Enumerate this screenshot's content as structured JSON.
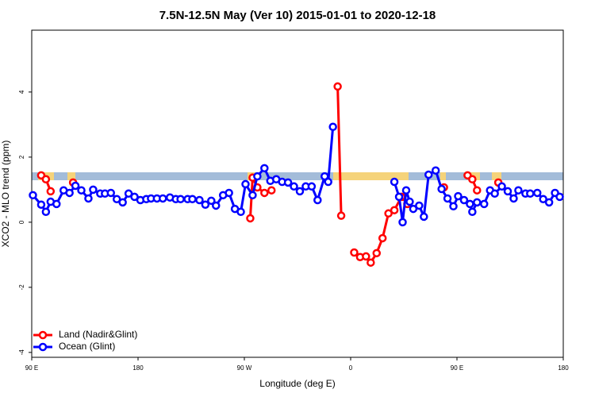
{
  "chart_data": {
    "type": "line",
    "title": "7.5N-12.5N May (Ver 10)   2015-01-01 to 2020-12-18",
    "x_label": "Longitude (deg E)",
    "y_label": "XCO2 - MLO trend (ppm)",
    "xlim": [
      90,
      540
    ],
    "ylim": [
      -4.15,
      5.9
    ],
    "xticks": [
      {
        "value": 90,
        "label": "90 E"
      },
      180,
      {
        "value": 270,
        "label": "90 W"
      },
      {
        "value": 360,
        "label": "0"
      },
      {
        "value": 450,
        "label": "90 E"
      },
      {
        "value": 540,
        "label": "180"
      }
    ],
    "yticks": [
      -4,
      -2,
      0,
      2,
      4
    ],
    "legend": "bottom-left",
    "series": [
      {
        "name": "Land (Nadir&Glint)",
        "color": "#ff0000",
        "x": [
          98,
          102,
          106,
          110,
          125,
          200,
          275,
          277,
          281,
          287,
          293,
          330,
          349,
          352,
          356,
          363,
          368,
          373,
          377,
          382,
          387,
          392,
          397,
          403,
          408,
          420,
          439,
          450,
          459,
          463,
          467,
          470,
          485
        ],
        "values": [
          1.44,
          1.32,
          0.95,
          null,
          1.22,
          null,
          0.12,
          1.37,
          1.07,
          0.9,
          0.98,
          null,
          4.17,
          0.2,
          null,
          -0.93,
          -1.07,
          -1.05,
          -1.24,
          -0.95,
          -0.49,
          0.27,
          0.37,
          0.78,
          0.56,
          null,
          1.07,
          null,
          1.44,
          1.32,
          0.98,
          null,
          1.22
        ]
      },
      {
        "name": "Ocean (Glint)",
        "color": "#0000ff",
        "x": [
          91,
          98,
          102,
          106,
          111,
          117,
          122,
          127,
          132,
          138,
          142,
          148,
          152,
          157,
          162,
          167,
          172,
          177,
          182,
          187,
          191,
          196,
          201,
          207,
          212,
          216,
          222,
          226,
          232,
          237,
          242,
          246,
          252,
          257,
          262,
          267,
          271,
          277,
          281,
          287,
          292,
          297,
          302,
          307,
          312,
          317,
          322,
          327,
          332,
          338,
          341,
          345,
          380,
          397,
          401,
          404,
          407,
          410,
          413,
          418,
          422,
          426,
          432,
          437,
          442,
          447,
          451,
          456,
          461,
          463,
          467,
          473,
          478,
          482,
          488,
          493,
          498,
          502,
          508,
          512,
          518,
          523,
          528,
          533,
          537
        ],
        "values": [
          0.83,
          0.54,
          0.32,
          0.63,
          0.56,
          0.98,
          0.9,
          1.12,
          0.98,
          0.73,
          1.0,
          0.88,
          0.88,
          0.9,
          0.71,
          0.61,
          0.88,
          0.78,
          0.68,
          0.71,
          0.73,
          0.73,
          0.73,
          0.76,
          0.71,
          0.71,
          0.71,
          0.71,
          0.68,
          0.54,
          0.66,
          0.51,
          0.83,
          0.9,
          0.41,
          0.32,
          1.17,
          0.83,
          1.41,
          1.66,
          1.27,
          1.32,
          1.24,
          1.22,
          1.1,
          0.95,
          1.1,
          1.1,
          0.68,
          1.41,
          1.24,
          2.93,
          null,
          1.24,
          0.78,
          0,
          0.98,
          0.63,
          0.41,
          0.51,
          0.17,
          1.46,
          1.59,
          1.02,
          0.73,
          0.49,
          0.8,
          0.68,
          0.56,
          0.32,
          0.61,
          0.56,
          0.98,
          0.88,
          1.1,
          0.95,
          0.73,
          0.98,
          0.88,
          0.88,
          0.9,
          0.71,
          0.61,
          0.9,
          0.78
        ]
      }
    ]
  }
}
